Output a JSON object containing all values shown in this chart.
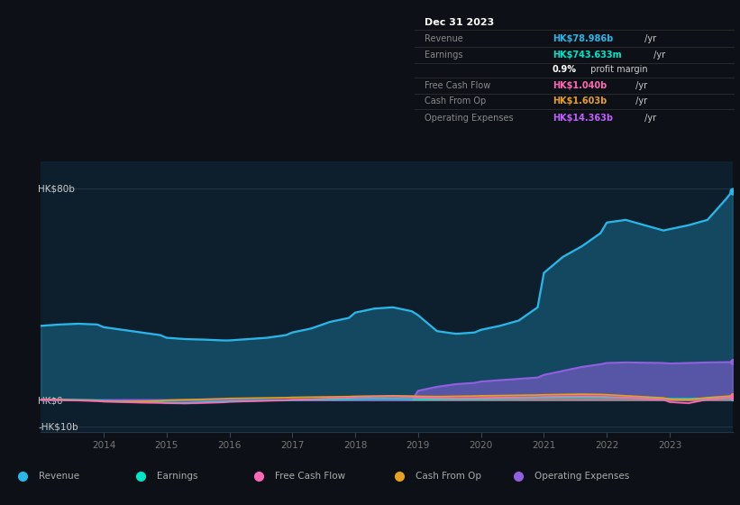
{
  "bg_color": "#0d1117",
  "plot_bg_color": "#0d1f2d",
  "grid_color": "#253545",
  "years": [
    2013.0,
    2013.3,
    2013.6,
    2013.9,
    2014.0,
    2014.3,
    2014.6,
    2014.9,
    2015.0,
    2015.3,
    2015.6,
    2015.9,
    2016.0,
    2016.3,
    2016.6,
    2016.9,
    2017.0,
    2017.3,
    2017.6,
    2017.9,
    2018.0,
    2018.3,
    2018.6,
    2018.9,
    2019.0,
    2019.3,
    2019.6,
    2019.9,
    2020.0,
    2020.3,
    2020.6,
    2020.9,
    2021.0,
    2021.3,
    2021.6,
    2021.9,
    2022.0,
    2022.3,
    2022.6,
    2022.9,
    2023.0,
    2023.3,
    2023.6,
    2023.9,
    2024.0
  ],
  "revenue": [
    28,
    28.5,
    28.8,
    28.5,
    27.5,
    26.5,
    25.5,
    24.5,
    23.5,
    23.0,
    22.8,
    22.5,
    22.5,
    23.0,
    23.5,
    24.5,
    25.5,
    27.0,
    29.5,
    31.0,
    33.0,
    34.5,
    35.0,
    33.5,
    32.0,
    26.0,
    25.0,
    25.5,
    26.5,
    28.0,
    30.0,
    35.0,
    48.0,
    54.0,
    58.0,
    63.0,
    67.0,
    68.0,
    66.0,
    64.0,
    64.5,
    66.0,
    68.0,
    76.0,
    79.0
  ],
  "earnings": [
    0.3,
    0.2,
    0.1,
    -0.1,
    -0.3,
    -0.5,
    -0.7,
    -0.8,
    -0.9,
    -1.0,
    -0.8,
    -0.6,
    -0.4,
    -0.3,
    -0.2,
    -0.1,
    0.0,
    0.1,
    0.2,
    0.3,
    0.4,
    0.5,
    0.5,
    0.4,
    0.3,
    0.3,
    0.3,
    0.4,
    0.5,
    0.6,
    0.7,
    0.8,
    0.9,
    1.0,
    1.1,
    1.0,
    0.9,
    0.8,
    0.7,
    0.6,
    0.5,
    0.5,
    0.6,
    0.7,
    0.74
  ],
  "free_cash_flow": [
    0.1,
    0.0,
    -0.2,
    -0.4,
    -0.6,
    -0.8,
    -1.0,
    -1.1,
    -1.2,
    -1.3,
    -1.1,
    -0.9,
    -0.7,
    -0.5,
    -0.3,
    -0.1,
    0.1,
    0.3,
    0.6,
    0.8,
    1.0,
    1.2,
    1.3,
    1.1,
    0.9,
    0.7,
    0.6,
    0.7,
    0.8,
    0.9,
    1.0,
    1.1,
    1.2,
    1.3,
    1.4,
    1.3,
    1.2,
    0.9,
    0.5,
    0.1,
    -0.8,
    -1.2,
    0.2,
    0.8,
    1.04
  ],
  "cash_from_op": [
    0.2,
    0.1,
    -0.1,
    -0.3,
    -0.5,
    -0.6,
    -0.5,
    -0.3,
    -0.1,
    0.1,
    0.3,
    0.5,
    0.6,
    0.7,
    0.8,
    0.9,
    1.0,
    1.1,
    1.2,
    1.3,
    1.4,
    1.5,
    1.6,
    1.5,
    1.4,
    1.3,
    1.4,
    1.5,
    1.6,
    1.7,
    1.8,
    1.9,
    2.0,
    2.1,
    2.2,
    2.1,
    2.0,
    1.6,
    1.2,
    0.8,
    0.3,
    0.1,
    0.9,
    1.4,
    1.6
  ],
  "operating_expenses": [
    0.0,
    0.0,
    0.0,
    0.0,
    0.0,
    0.0,
    0.0,
    0.0,
    0.0,
    0.0,
    0.0,
    0.0,
    0.0,
    0.0,
    0.0,
    0.0,
    0.0,
    0.0,
    0.0,
    0.0,
    0.0,
    0.0,
    0.0,
    0.0,
    3.5,
    5.0,
    6.0,
    6.5,
    7.0,
    7.5,
    8.0,
    8.5,
    9.5,
    11.0,
    12.5,
    13.5,
    14.0,
    14.2,
    14.1,
    14.0,
    13.8,
    14.0,
    14.2,
    14.3,
    14.36
  ],
  "ylim": [
    -12,
    90
  ],
  "ytick_vals": [
    -10,
    0,
    80
  ],
  "ytick_labels": [
    "-HK$10b",
    "HK$0",
    "HK$80b"
  ],
  "xticks": [
    2014,
    2015,
    2016,
    2017,
    2018,
    2019,
    2020,
    2021,
    2022,
    2023
  ],
  "revenue_color": "#29b6e8",
  "earnings_color": "#00e5c8",
  "free_cash_flow_color": "#ff69b4",
  "cash_from_op_color": "#e8a020",
  "operating_expenses_color": "#9060e0",
  "table_bg": "#070a0e",
  "table_title": "Dec 31 2023",
  "table_rows": [
    {
      "label": "Revenue",
      "value": "HK$78.986b",
      "suffix": " /yr",
      "value_color": "#29b6e8",
      "label_color": "#888888"
    },
    {
      "label": "Earnings",
      "value": "HK$743.633m",
      "suffix": " /yr",
      "value_color": "#00e5c8",
      "label_color": "#888888"
    },
    {
      "label": "",
      "value": "0.9%",
      "suffix": " profit margin",
      "value_color": "#ffffff",
      "label_color": "#888888"
    },
    {
      "label": "Free Cash Flow",
      "value": "HK$1.040b",
      "suffix": " /yr",
      "value_color": "#ff69b4",
      "label_color": "#888888"
    },
    {
      "label": "Cash From Op",
      "value": "HK$1.603b",
      "suffix": " /yr",
      "value_color": "#e8a020",
      "label_color": "#888888"
    },
    {
      "label": "Operating Expenses",
      "value": "HK$14.363b",
      "suffix": " /yr",
      "value_color": "#c060ff",
      "label_color": "#888888"
    }
  ],
  "legend_items": [
    {
      "label": "Revenue",
      "color": "#29b6e8"
    },
    {
      "label": "Earnings",
      "color": "#00e5c8"
    },
    {
      "label": "Free Cash Flow",
      "color": "#ff69b4"
    },
    {
      "label": "Cash From Op",
      "color": "#e8a020"
    },
    {
      "label": "Operating Expenses",
      "color": "#9060e0"
    }
  ]
}
